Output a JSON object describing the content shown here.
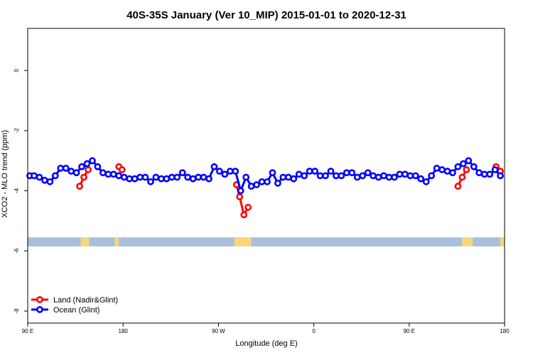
{
  "chart_data": {
    "type": "line",
    "title": "40S-35S January (Ver 10_MIP)   2015-01-01 to 2020-12-31",
    "xlabel": "Longitude (deg E)",
    "ylabel": "XCO2 - MLO trend (ppm)",
    "xlim": [
      90,
      540
    ],
    "ylim": [
      -8.4,
      1.4
    ],
    "x_ticks": [
      {
        "value": 90,
        "label": "90 E"
      },
      {
        "value": 180,
        "label": "180"
      },
      {
        "value": 270,
        "label": "90 W"
      },
      {
        "value": 360,
        "label": "0"
      },
      {
        "value": 450,
        "label": "90 E"
      },
      {
        "value": 540,
        "label": "180"
      }
    ],
    "y_ticks": [
      {
        "value": 0,
        "label": "0"
      },
      {
        "value": -2,
        "label": "-2"
      },
      {
        "value": -4,
        "label": "-4"
      },
      {
        "value": -6,
        "label": "-6"
      },
      {
        "value": -8,
        "label": "-8"
      }
    ],
    "grid": false,
    "legend_position": "bottom-left",
    "land_band": {
      "y_top": -5.55,
      "y_bottom": -5.85,
      "ocean_color": "#a8bfdd",
      "land_color": "#f7d77a"
    },
    "land_segments": [
      [
        140,
        148
      ],
      [
        172,
        176
      ],
      [
        285,
        301
      ],
      [
        500,
        510
      ],
      [
        536,
        540
      ]
    ],
    "series": [
      {
        "name": "Land (Nadir&Glint)",
        "color": "#ff0000",
        "segments": [
          [
            [
              139,
              -3.85
            ],
            [
              143,
              -3.55
            ],
            [
              147,
              -3.3
            ]
          ],
          [
            [
              176,
              -3.2
            ],
            [
              179,
              -3.3
            ]
          ],
          [
            [
              287,
              -3.8
            ],
            [
              290,
              -4.2
            ],
            [
              294,
              -4.8
            ],
            [
              298,
              -4.55
            ]
          ],
          [
            [
              496,
              -3.85
            ],
            [
              500,
              -3.55
            ],
            [
              504,
              -3.3
            ]
          ],
          [
            [
              532,
              -3.2
            ],
            [
              536,
              -3.35
            ]
          ]
        ]
      },
      {
        "name": "Ocean (Glint)",
        "color": "#0000ff",
        "segments": [
          [
            [
              92,
              -3.5
            ],
            [
              96,
              -3.5
            ],
            [
              101,
              -3.55
            ],
            [
              106,
              -3.65
            ],
            [
              111,
              -3.7
            ],
            [
              116,
              -3.5
            ],
            [
              121,
              -3.25
            ],
            [
              126,
              -3.25
            ],
            [
              131,
              -3.35
            ],
            [
              136,
              -3.4
            ],
            [
              141,
              -3.2
            ],
            [
              146,
              -3.1
            ],
            [
              151,
              -3.0
            ],
            [
              156,
              -3.2
            ],
            [
              161,
              -3.4
            ],
            [
              166,
              -3.45
            ],
            [
              171,
              -3.45
            ],
            [
              176,
              -3.5
            ],
            [
              181,
              -3.55
            ],
            [
              186,
              -3.6
            ],
            [
              191,
              -3.6
            ],
            [
              196,
              -3.55
            ],
            [
              201,
              -3.55
            ],
            [
              206,
              -3.7
            ],
            [
              211,
              -3.55
            ],
            [
              216,
              -3.6
            ],
            [
              221,
              -3.6
            ],
            [
              226,
              -3.55
            ],
            [
              231,
              -3.55
            ],
            [
              236,
              -3.4
            ],
            [
              241,
              -3.55
            ],
            [
              246,
              -3.6
            ],
            [
              251,
              -3.55
            ],
            [
              256,
              -3.55
            ],
            [
              261,
              -3.6
            ],
            [
              266,
              -3.2
            ],
            [
              271,
              -3.35
            ],
            [
              276,
              -3.45
            ],
            [
              281,
              -3.35
            ],
            [
              286,
              -3.35
            ],
            [
              291,
              -4.0
            ],
            [
              296,
              -3.55
            ],
            [
              301,
              -3.85
            ],
            [
              306,
              -3.8
            ],
            [
              311,
              -3.7
            ],
            [
              316,
              -3.7
            ],
            [
              321,
              -3.4
            ],
            [
              326,
              -3.75
            ],
            [
              331,
              -3.55
            ],
            [
              336,
              -3.55
            ],
            [
              341,
              -3.6
            ],
            [
              346,
              -3.45
            ],
            [
              351,
              -3.5
            ],
            [
              356,
              -3.35
            ],
            [
              361,
              -3.35
            ],
            [
              366,
              -3.5
            ],
            [
              371,
              -3.5
            ],
            [
              376,
              -3.35
            ],
            [
              381,
              -3.5
            ],
            [
              386,
              -3.5
            ],
            [
              391,
              -3.4
            ],
            [
              396,
              -3.4
            ],
            [
              401,
              -3.55
            ],
            [
              406,
              -3.5
            ],
            [
              411,
              -3.4
            ],
            [
              416,
              -3.5
            ],
            [
              421,
              -3.55
            ],
            [
              426,
              -3.5
            ],
            [
              431,
              -3.55
            ],
            [
              436,
              -3.55
            ],
            [
              441,
              -3.45
            ],
            [
              446,
              -3.45
            ],
            [
              451,
              -3.5
            ],
            [
              456,
              -3.5
            ],
            [
              461,
              -3.6
            ],
            [
              466,
              -3.7
            ],
            [
              471,
              -3.5
            ],
            [
              476,
              -3.25
            ],
            [
              481,
              -3.3
            ],
            [
              486,
              -3.35
            ],
            [
              491,
              -3.4
            ],
            [
              496,
              -3.2
            ],
            [
              501,
              -3.1
            ],
            [
              506,
              -3.0
            ],
            [
              511,
              -3.2
            ],
            [
              516,
              -3.4
            ],
            [
              521,
              -3.45
            ],
            [
              526,
              -3.45
            ],
            [
              531,
              -3.3
            ],
            [
              536,
              -3.5
            ]
          ]
        ]
      }
    ]
  }
}
